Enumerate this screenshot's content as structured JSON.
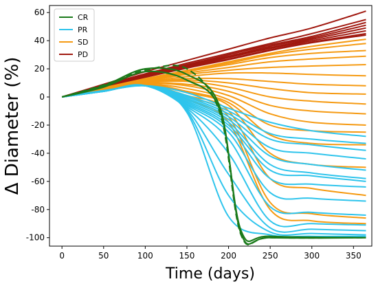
{
  "chart_data": {
    "type": "line",
    "xlabel": "Time (days)",
    "ylabel": "Δ Diameter (%)",
    "xlim": [
      -15,
      372
    ],
    "ylim": [
      -106,
      65
    ],
    "xticks": [
      0,
      50,
      100,
      150,
      200,
      250,
      300,
      350
    ],
    "yticks": [
      -100,
      -80,
      -60,
      -40,
      -20,
      0,
      20,
      40,
      60
    ],
    "grid": false,
    "legend_position": "top-left",
    "legend": [
      {
        "label": "CR",
        "color": "#1a7a1a"
      },
      {
        "label": "PR",
        "color": "#2ec4ec"
      },
      {
        "label": "SD",
        "color": "#f59a12"
      },
      {
        "label": "PD",
        "color": "#a0180f"
      }
    ],
    "series": [
      {
        "category": "PD",
        "color": "#a0180f",
        "x": [
          0,
          50,
          100,
          150,
          200,
          250,
          300,
          365
        ],
        "curves": [
          [
            0,
            9,
            18,
            26,
            34,
            42,
            49,
            61
          ],
          [
            0,
            8.5,
            16.5,
            24,
            31,
            38,
            45,
            55
          ],
          [
            0,
            8,
            16,
            23,
            30,
            37,
            43,
            53
          ],
          [
            0,
            7.8,
            15.5,
            22.5,
            29,
            36,
            42,
            51
          ],
          [
            0,
            7.5,
            15,
            22,
            28.5,
            35,
            41,
            49
          ],
          [
            0,
            7.3,
            14.8,
            21.5,
            28,
            34.5,
            40,
            47
          ],
          [
            0,
            7,
            14.3,
            21,
            27,
            33.5,
            39,
            45
          ],
          [
            0,
            7,
            14,
            20.5,
            26.5,
            33,
            38.5,
            44
          ]
        ]
      },
      {
        "category": "SD",
        "color": "#f59a12",
        "x": [
          0,
          50,
          100,
          150,
          200,
          250,
          300,
          365
        ],
        "curves": [
          [
            0,
            6.5,
            13,
            19,
            25,
            31,
            36,
            41
          ],
          [
            0,
            6.5,
            12.5,
            18.5,
            24,
            30,
            34,
            38
          ],
          [
            0,
            6.2,
            12,
            18,
            23,
            28,
            31,
            33
          ],
          [
            0,
            6,
            11.5,
            17,
            21,
            25,
            27,
            29
          ],
          [
            0,
            5.8,
            11,
            16,
            19,
            21,
            22,
            23
          ],
          [
            0,
            5.6,
            10.5,
            14.5,
            17,
            17,
            16,
            15
          ],
          [
            0,
            5.5,
            10,
            13,
            13,
            11,
            9,
            8
          ],
          [
            0,
            5.3,
            10,
            12,
            10,
            6,
            3,
            2
          ],
          [
            0,
            5.2,
            10,
            11,
            7,
            0,
            -3,
            -5
          ],
          [
            0,
            5,
            9.5,
            9,
            4,
            -6,
            -10,
            -12
          ],
          [
            0,
            5,
            9.5,
            8,
            1,
            -12,
            -18,
            -20
          ],
          [
            0,
            4.8,
            9,
            6,
            -2,
            -20,
            -24,
            -25
          ],
          [
            0,
            4.8,
            9,
            4,
            -4,
            -27,
            -33,
            -34
          ],
          [
            0,
            4.6,
            9,
            3,
            -6,
            -40,
            -48,
            -50
          ],
          [
            0,
            4.5,
            8.5,
            1,
            -10,
            -58,
            -65,
            -70
          ],
          [
            0,
            4.4,
            8.5,
            0,
            -14,
            -75,
            -83,
            -86
          ],
          [
            0,
            4.3,
            8.5,
            -2,
            -18,
            -80,
            -88,
            -90
          ]
        ]
      },
      {
        "category": "PR",
        "color": "#2ec4ec",
        "x": [
          0,
          50,
          100,
          150,
          200,
          250,
          300,
          365
        ],
        "curves": [
          [
            0,
            4.5,
            8,
            3,
            -8,
            -18,
            -24,
            -28
          ],
          [
            0,
            4.5,
            8,
            1,
            -10,
            -26,
            -30,
            -33
          ],
          [
            0,
            4.4,
            8,
            0,
            -12,
            -30,
            -34,
            -38
          ],
          [
            0,
            4.3,
            8,
            -1,
            -14,
            -36,
            -40,
            -44
          ],
          [
            0,
            4.3,
            8,
            -2,
            -16,
            -42,
            -48,
            -52
          ],
          [
            0,
            4.2,
            8,
            -3,
            -18,
            -48,
            -54,
            -58
          ],
          [
            0,
            4.2,
            8,
            -4,
            -20,
            -52,
            -56,
            -60
          ],
          [
            0,
            4.1,
            8,
            -5,
            -22,
            -58,
            -62,
            -64
          ],
          [
            0,
            4,
            8,
            -6,
            -25,
            -68,
            -72,
            -74
          ],
          [
            0,
            4,
            8,
            -7,
            -30,
            -78,
            -82,
            -84
          ],
          [
            0,
            4,
            8,
            -8,
            -40,
            -88,
            -90,
            -91
          ],
          [
            0,
            4,
            8,
            -9,
            -55,
            -93,
            -94,
            -95
          ],
          [
            0,
            4,
            8,
            -10,
            -70,
            -96,
            -97,
            -98
          ],
          [
            0,
            4,
            8,
            -11,
            -85,
            -98,
            -99,
            -99
          ]
        ]
      },
      {
        "category": "CR",
        "color": "#1a7a1a",
        "x": [
          0,
          50,
          100,
          150,
          190,
          215,
          250,
          365
        ],
        "curves": [
          [
            0,
            7,
            18,
            12,
            -10,
            -95,
            -99,
            -100
          ],
          [
            0,
            8,
            20,
            16,
            -8,
            -97,
            -100,
            -100
          ],
          [
            0,
            8.5,
            19,
            20,
            -12,
            -98,
            -100,
            -100
          ]
        ]
      }
    ]
  }
}
